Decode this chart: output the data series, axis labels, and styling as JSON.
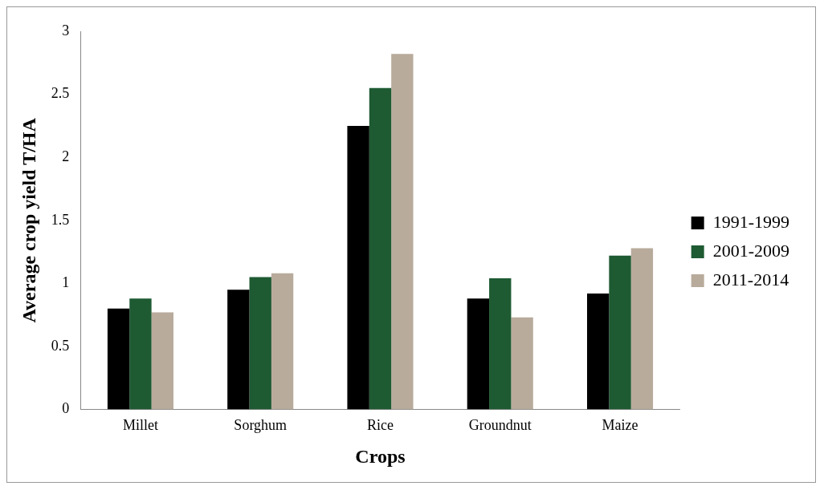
{
  "chart_data": {
    "type": "bar",
    "xlabel": "Crops",
    "ylabel": "Average crop yield T/HA",
    "categories": [
      "Millet",
      "Sorghum",
      "Rice",
      "Groundnut",
      "Maize"
    ],
    "series": [
      {
        "name": "1991-1999",
        "color": "#000000",
        "values": [
          0.8,
          0.95,
          2.25,
          0.88,
          0.92
        ]
      },
      {
        "name": "2001-2009",
        "color": "#1e5a32",
        "values": [
          0.88,
          1.05,
          2.55,
          1.04,
          1.22
        ]
      },
      {
        "name": "2011-2014",
        "color": "#b8ab9c",
        "values": [
          0.77,
          1.08,
          2.82,
          0.73,
          1.28
        ]
      }
    ],
    "ylim": [
      0,
      3
    ],
    "yticks": [
      0,
      0.5,
      1,
      1.5,
      2,
      2.5,
      3
    ],
    "grid": false,
    "legend": "right"
  }
}
